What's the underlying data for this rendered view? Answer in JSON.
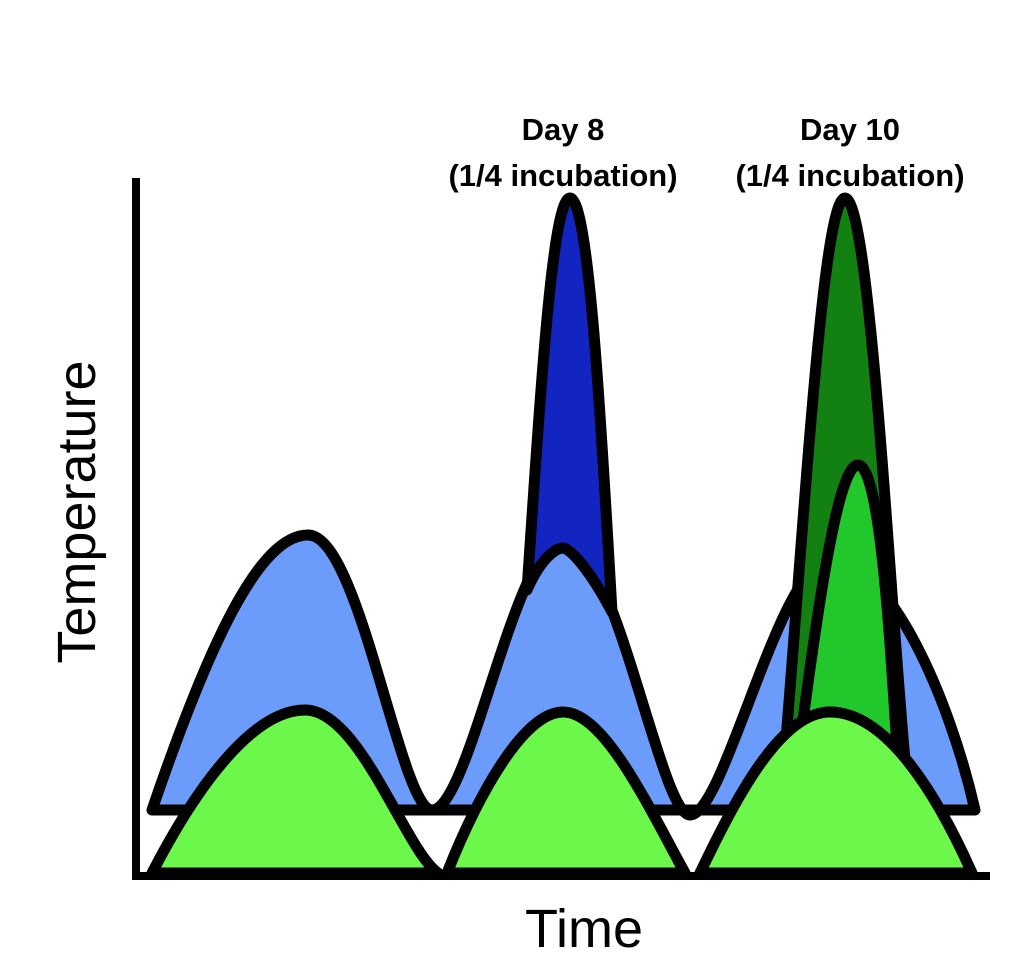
{
  "axes": {
    "xlabel": "Time",
    "ylabel": "Temperature"
  },
  "annotations": [
    {
      "line1": "Day 8",
      "line2": "(1/4 incubation)"
    },
    {
      "line1": "Day 10",
      "line2": "(1/4 incubation)"
    }
  ],
  "colors": {
    "light_blue": "#6b9cfb",
    "dark_blue": "#1325c0",
    "light_green": "#6cf84a",
    "mid_green": "#22c72b",
    "dark_green": "#138012",
    "outline": "#000000"
  }
}
